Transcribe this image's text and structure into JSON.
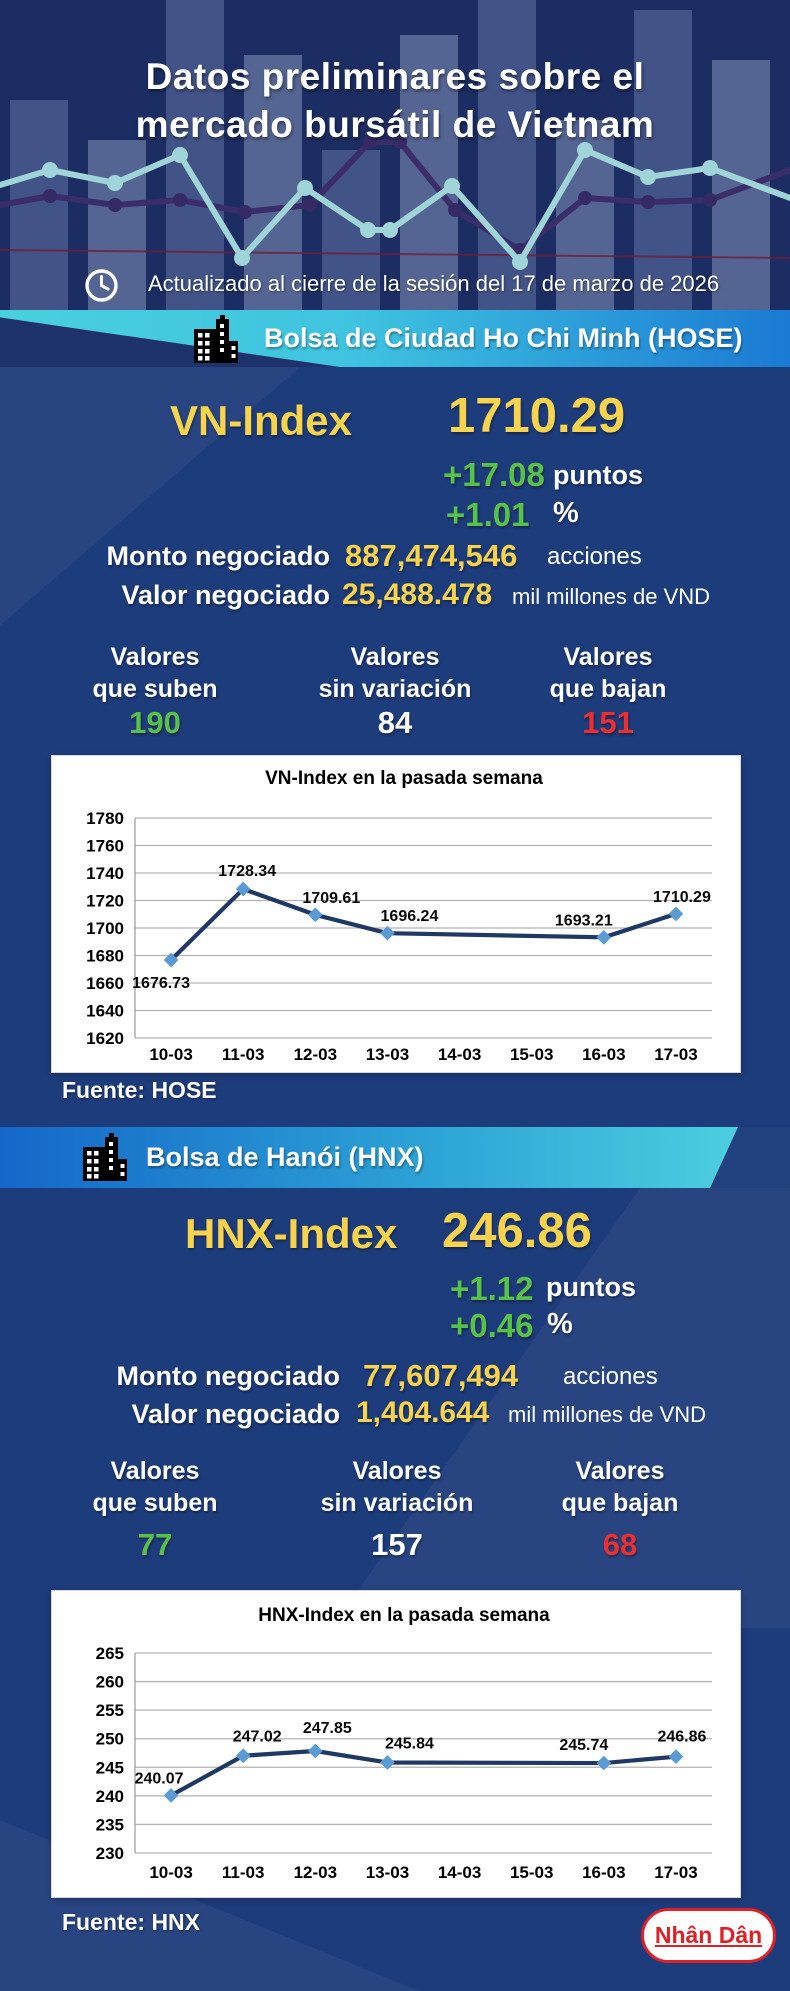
{
  "header": {
    "title_line1": "Datos preliminares sobre el",
    "title_line2": "mercado bursátil de Vietnam",
    "updated": "Actualizado al cierre de la sesión del 17 de marzo de 2026"
  },
  "hose": {
    "banner_label": "Bolsa de Ciudad Ho Chi Minh (HOSE)",
    "index_label": "VN-Index",
    "index_value": "1710.29",
    "change_points": "+17.08",
    "change_points_unit": "puntos",
    "change_pct": "+1.01",
    "change_pct_unit": "%",
    "volume_label": "Monto negociado",
    "volume_value": "887,474,546",
    "volume_unit": "acciones",
    "turnover_label": "Valor negociado",
    "turnover_value": "25,488.478",
    "turnover_unit": "mil millones de VND",
    "advancers_label1": "Valores",
    "advancers_label2": "que suben",
    "advancers_value": "190",
    "unchanged_label1": "Valores",
    "unchanged_label2": "sin variación",
    "unchanged_value": "84",
    "decliners_label1": "Valores",
    "decliners_label2": "que bajan",
    "decliners_value": "151",
    "source": "Fuente: HOSE"
  },
  "hnx": {
    "banner_label": "Bolsa de Hanói (HNX)",
    "index_label": "HNX-Index",
    "index_value": "246.86",
    "change_points": "+1.12",
    "change_points_unit": "puntos",
    "change_pct": "+0.46",
    "change_pct_unit": "%",
    "volume_label": "Monto negociado",
    "volume_value": "77,607,494",
    "volume_unit": "acciones",
    "turnover_label": "Valor negociado",
    "turnover_value": "1,404.644",
    "turnover_unit": "mil millones de VND",
    "advancers_label1": "Valores",
    "advancers_label2": "que suben",
    "advancers_value": "77",
    "unchanged_label1": "Valores",
    "unchanged_label2": "sin variación",
    "unchanged_value": "157",
    "decliners_label1": "Valores",
    "decliners_label2": "que bajan",
    "decliners_value": "68",
    "source": "Fuente:  HNX"
  },
  "chart_data": [
    {
      "type": "line",
      "title": "VN-Index en la pasada semana",
      "categories": [
        "10-03",
        "11-03",
        "12-03",
        "13-03",
        "14-03",
        "15-03",
        "16-03",
        "17-03"
      ],
      "series": [
        {
          "name": "VN-Index",
          "values": [
            1676.73,
            1728.34,
            1709.61,
            1696.24,
            null,
            null,
            1693.21,
            1710.29
          ]
        }
      ],
      "ylim": [
        1620,
        1780
      ],
      "ytick_step": 20,
      "grid": true,
      "legend": "none",
      "line_color": "#1f3864",
      "marker": "diamond",
      "marker_color": "#5b9bd5"
    },
    {
      "type": "line",
      "title": "HNX-Index en la pasada semana",
      "categories": [
        "10-03",
        "11-03",
        "12-03",
        "13-03",
        "14-03",
        "15-03",
        "16-03",
        "17-03"
      ],
      "series": [
        {
          "name": "HNX-Index",
          "values": [
            240.07,
            247.02,
            247.85,
            245.84,
            null,
            null,
            245.74,
            246.86
          ]
        }
      ],
      "ylim": [
        230,
        265
      ],
      "ytick_step": 5,
      "grid": true,
      "legend": "none",
      "line_color": "#1f3864",
      "marker": "diamond",
      "marker_color": "#5b9bd5"
    }
  ],
  "footer": {
    "logo_text": "Nhân Dân"
  },
  "colors": {
    "accent_yellow": "#f8d34b",
    "accent_green": "#57c248",
    "accent_red": "#ee2e31",
    "body_bg": "#1d3c7c",
    "header_bg": "#1b2d62",
    "banner_cyan": "#49d0de",
    "banner_blue": "#1b7ad3",
    "chart_line": "#1f3864",
    "chart_marker": "#5b9bd5"
  }
}
